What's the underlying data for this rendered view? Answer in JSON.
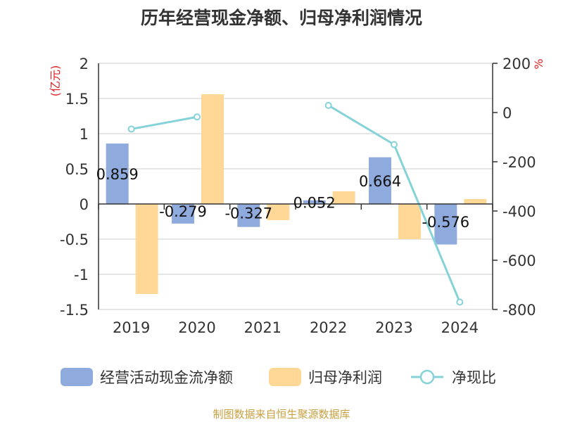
{
  "chart_data": {
    "type": "bar",
    "title": "历年经营现金净额、归母净利润情况",
    "categories": [
      "2019",
      "2020",
      "2021",
      "2022",
      "2023",
      "2024"
    ],
    "series": [
      {
        "name": "经营活动现金流净额",
        "kind": "bar",
        "axis": "left",
        "color": "#8faadc",
        "values": [
          0.859,
          -0.279,
          -0.327,
          0.052,
          0.664,
          -0.576
        ],
        "labels": [
          "0.859",
          "-0.279",
          "-0.327",
          "0.052",
          "0.664",
          "-0.576"
        ]
      },
      {
        "name": "归母净利润",
        "kind": "bar",
        "axis": "left",
        "color": "#ffd898",
        "values": [
          -1.28,
          1.56,
          -0.23,
          0.18,
          -0.5,
          0.07
        ]
      },
      {
        "name": "净现比",
        "kind": "line",
        "axis": "right",
        "color": "#85d2d8",
        "values": [
          -67,
          -17.9,
          null,
          29,
          -130,
          -770
        ]
      }
    ],
    "ylabel_left": "(亿元)",
    "ylabel_right": "%",
    "ylim_left": [
      -1.5,
      2
    ],
    "yticks_left": [
      2,
      1.5,
      1,
      0.5,
      0,
      -0.5,
      -1,
      -1.5
    ],
    "ylim_right": [
      -800,
      200
    ],
    "yticks_right": [
      200,
      0,
      -200,
      -400,
      -600,
      -800
    ],
    "grid": true,
    "legend_position": "bottom"
  },
  "source_text": "制图数据来自恒生聚源数据库",
  "colors": {
    "title": "#333333",
    "axis_label": "#e02020",
    "source": "#c8a040",
    "grid": "#cccccc"
  }
}
